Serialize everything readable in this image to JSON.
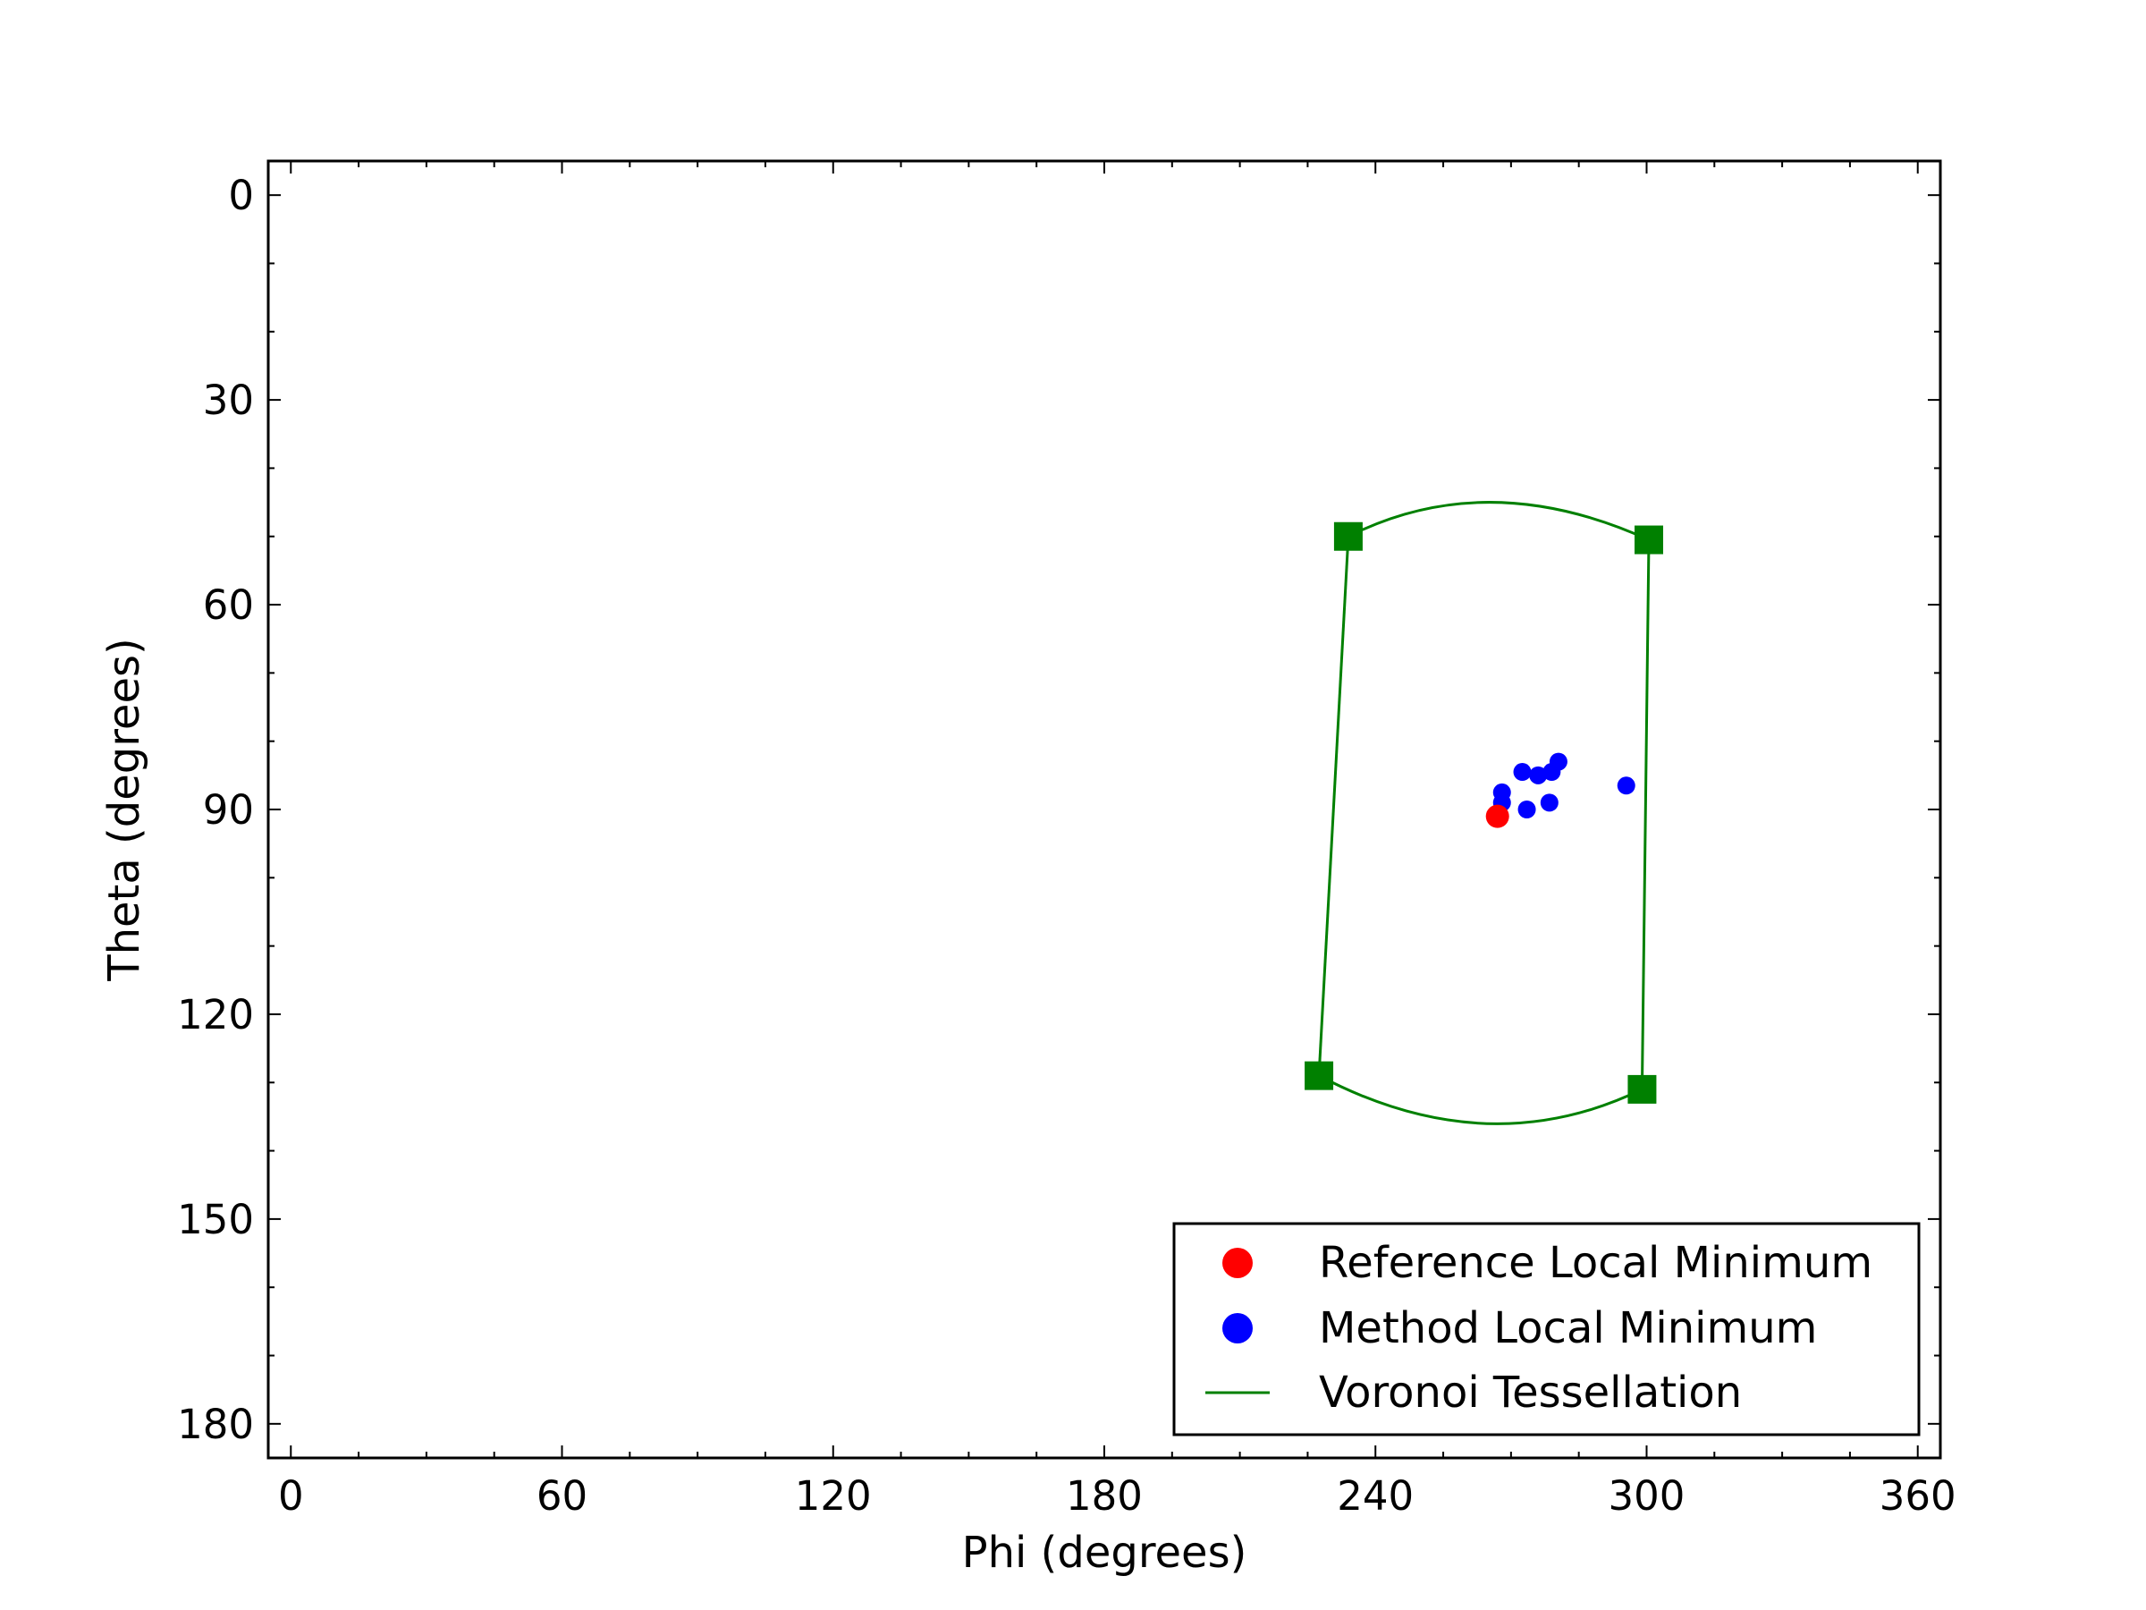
{
  "chart_data": {
    "type": "scatter",
    "xlabel": "Phi (degrees)",
    "ylabel": "Theta (degrees)",
    "xlim": [
      -5,
      365
    ],
    "ylim": [
      185,
      -5
    ],
    "y_inverted": true,
    "xticks": [
      0,
      60,
      120,
      180,
      240,
      300,
      360
    ],
    "yticks": [
      0,
      30,
      60,
      90,
      120,
      150,
      180
    ],
    "grid": false,
    "legend_position": "lower-right",
    "series": [
      {
        "name": "Reference Local Minimum",
        "kind": "points",
        "color": "#ff0000",
        "marker": "circle",
        "points": [
          [
            267.0,
            91.0
          ]
        ]
      },
      {
        "name": "Method Local Minimum",
        "kind": "points",
        "color": "#0000ff",
        "marker": "circle",
        "points": [
          [
            268.0,
            87.5
          ],
          [
            268.0,
            89.0
          ],
          [
            272.5,
            84.5
          ],
          [
            276.0,
            85.0
          ],
          [
            279.0,
            84.5
          ],
          [
            280.5,
            83.0
          ],
          [
            273.5,
            90.0
          ],
          [
            278.5,
            89.0
          ],
          [
            295.5,
            86.5
          ]
        ]
      },
      {
        "name": "Voronoi Tessellation",
        "kind": "line",
        "color": "#008000",
        "vertex_marker": "square",
        "vertices": [
          [
            234.0,
            50.0
          ],
          [
            300.5,
            50.5
          ],
          [
            299.0,
            131.0
          ],
          [
            227.5,
            129.0
          ]
        ],
        "edges": [
          {
            "from": 0,
            "to": 1,
            "mid": [
              266.0,
              45.0
            ]
          },
          {
            "from": 1,
            "to": 2
          },
          {
            "from": 2,
            "to": 3,
            "mid": [
              264.0,
              136.0
            ]
          },
          {
            "from": 3,
            "to": 0
          }
        ]
      }
    ]
  }
}
